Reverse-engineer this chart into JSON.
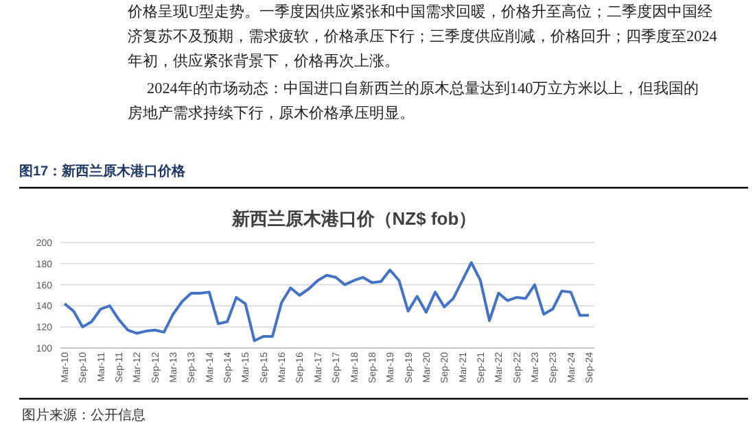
{
  "chart_data": {
    "type": "line",
    "title": "新西兰原木港口价（NZ$ fob）",
    "annotations": [
      "价格呈现U型走势。一季度因供应紧张和中国需求回暖，价格升至高位；二季度因中国经",
      "济复苏不及预期，需求疲软，价格承压下行；三季度供应削减，价格回升；四季度至2024",
      "年初，供应紧张背景下，价格再次上涨。",
      "2024年的市场动态：中国进口自新西兰的原木总量达到140万立方米以上，但我国的",
      "房地产需求持续下行，原木价格承压明显。",
      "图17：新西兰原木港口价格",
      "图片来源：公开信息"
    ],
    "categories": [
      "Mar-10",
      null,
      "Sep-10",
      null,
      "Mar-11",
      null,
      "Sep-11",
      null,
      "Mar-12",
      null,
      "Sep-12",
      null,
      "Mar-13",
      null,
      "Sep-13",
      null,
      "Mar-14",
      null,
      "Sep-14",
      null,
      "Mar-15",
      null,
      "Sep-15",
      null,
      "Mar-16",
      null,
      "Sep-16",
      null,
      "Mar-17",
      null,
      "Sep-17",
      null,
      "Mar-18",
      null,
      "Sep-18",
      null,
      "Mar-19",
      null,
      "Sep-19",
      null,
      "Mar-20",
      null,
      "Sep-20",
      null,
      "Mar-21",
      null,
      "Sep-21",
      null,
      "Mar-22",
      null,
      "Sep-22",
      null,
      "Mar-23",
      null,
      "Sep-23",
      null,
      "Mar-24",
      null,
      "Sep-24"
    ],
    "series": [
      {
        "color": "#4472c4",
        "values": [
          142,
          135,
          120,
          125,
          137,
          140,
          127,
          117,
          114,
          116,
          117,
          115,
          132,
          144,
          152,
          152,
          153,
          123,
          125,
          148,
          142,
          107,
          111,
          111,
          143,
          157,
          150,
          156,
          164,
          169,
          167,
          160,
          164,
          167,
          162,
          163,
          174,
          164,
          135,
          149,
          134,
          153,
          139,
          147,
          164,
          181,
          164,
          126,
          152,
          145,
          148,
          147,
          160,
          132,
          137,
          154,
          153,
          131,
          131
        ]
      }
    ],
    "ylim": [
      100,
      200
    ],
    "yticks": [
      100,
      120,
      140,
      160,
      180,
      200
    ],
    "grid": "y",
    "line_style": "solid",
    "marker": "none"
  }
}
